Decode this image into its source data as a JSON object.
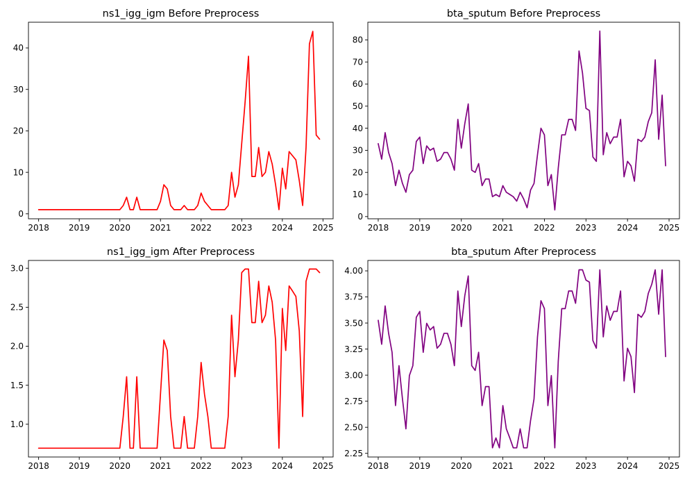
{
  "chart_data": [
    {
      "type": "line",
      "title": "ns1_igg_igm Before Preprocess",
      "color": "#ff0000",
      "x_start": "2018-01",
      "x_step": "1 month",
      "xlim": [
        "2017-10",
        "2025-04"
      ],
      "ylim": [
        -1.2,
        46.2
      ],
      "x_ticks": [
        "2018",
        "2019",
        "2020",
        "2021",
        "2022",
        "2023",
        "2024",
        "2025"
      ],
      "y_ticks": [
        0,
        10,
        20,
        30,
        40
      ],
      "y_tick_labels": [
        "0",
        "10",
        "20",
        "30",
        "40"
      ],
      "values": [
        1,
        1,
        1,
        1,
        1,
        1,
        1,
        1,
        1,
        1,
        1,
        1,
        1,
        1,
        1,
        1,
        1,
        1,
        1,
        1,
        1,
        1,
        1,
        1,
        1,
        2,
        4,
        1,
        1,
        4,
        1,
        1,
        1,
        1,
        1,
        1,
        3,
        7,
        6,
        2,
        1,
        1,
        1,
        2,
        1,
        1,
        1,
        2,
        5,
        3,
        2,
        1,
        1,
        1,
        1,
        1,
        2,
        10,
        4,
        7,
        17,
        27,
        38,
        9,
        9,
        16,
        9,
        10,
        15,
        12,
        7,
        1,
        11,
        6,
        15,
        14,
        13,
        8,
        2,
        16,
        41,
        44,
        19,
        18
      ]
    },
    {
      "type": "line",
      "title": "bta_sputum Before Preprocess",
      "color": "#800080",
      "x_start": "2018-01",
      "x_step": "1 month",
      "xlim": [
        "2017-10",
        "2025-04"
      ],
      "ylim": [
        -1.0,
        88.0
      ],
      "x_ticks": [
        "2018",
        "2019",
        "2020",
        "2021",
        "2022",
        "2023",
        "2024",
        "2025"
      ],
      "y_ticks": [
        0,
        10,
        20,
        30,
        40,
        50,
        60,
        70,
        80
      ],
      "y_tick_labels": [
        "0",
        "10",
        "20",
        "30",
        "40",
        "50",
        "60",
        "70",
        "80"
      ],
      "values": [
        33,
        26,
        38,
        29,
        24,
        14,
        21,
        15,
        11,
        19,
        21,
        34,
        36,
        24,
        32,
        30,
        31,
        25,
        26,
        29,
        29,
        26,
        21,
        44,
        31,
        42,
        51,
        21,
        20,
        24,
        14,
        17,
        17,
        9,
        10,
        9,
        14,
        11,
        10,
        9,
        7,
        11,
        8,
        4,
        12,
        15,
        28,
        40,
        37,
        14,
        19,
        3,
        22,
        37,
        37,
        44,
        44,
        39,
        75,
        65,
        49,
        48,
        27,
        25,
        84,
        28,
        38,
        33,
        36,
        36,
        44,
        18,
        25,
        23,
        16,
        35,
        34,
        36,
        43,
        47,
        71,
        35,
        55,
        23
      ]
    },
    {
      "type": "line",
      "title": "ns1_igg_igm After Preprocess",
      "color": "#ff0000",
      "x_start": "2018-01",
      "x_step": "1 month",
      "xlim": [
        "2017-10",
        "2025-04"
      ],
      "ylim": [
        0.58,
        3.1
      ],
      "x_ticks": [
        "2018",
        "2019",
        "2020",
        "2021",
        "2022",
        "2023",
        "2024",
        "2025"
      ],
      "y_ticks": [
        1.0,
        1.5,
        2.0,
        2.5,
        3.0
      ],
      "y_tick_labels": [
        "1.0",
        "1.5",
        "2.0",
        "2.5",
        "3.0"
      ],
      "values": [
        0.693,
        0.693,
        0.693,
        0.693,
        0.693,
        0.693,
        0.693,
        0.693,
        0.693,
        0.693,
        0.693,
        0.693,
        0.693,
        0.693,
        0.693,
        0.693,
        0.693,
        0.693,
        0.693,
        0.693,
        0.693,
        0.693,
        0.693,
        0.693,
        0.693,
        1.099,
        1.609,
        0.693,
        0.693,
        1.609,
        0.693,
        0.693,
        0.693,
        0.693,
        0.693,
        0.693,
        1.386,
        2.079,
        1.946,
        1.099,
        0.693,
        0.693,
        0.693,
        1.099,
        0.693,
        0.693,
        0.693,
        1.099,
        1.792,
        1.386,
        1.099,
        0.693,
        0.693,
        0.693,
        0.693,
        0.693,
        1.099,
        2.398,
        1.609,
        2.079,
        2.944,
        2.99,
        2.99,
        2.303,
        2.303,
        2.833,
        2.303,
        2.398,
        2.773,
        2.565,
        2.079,
        0.693,
        2.485,
        1.946,
        2.773,
        2.708,
        2.639,
        2.197,
        1.099,
        2.833,
        2.99,
        2.99,
        2.99,
        2.944
      ]
    },
    {
      "type": "line",
      "title": "bta_sputum After Preprocess",
      "color": "#800080",
      "x_start": "2018-01",
      "x_step": "1 month",
      "xlim": [
        "2017-10",
        "2025-04"
      ],
      "ylim": [
        2.215,
        4.1
      ],
      "x_ticks": [
        "2018",
        "2019",
        "2020",
        "2021",
        "2022",
        "2023",
        "2024",
        "2025"
      ],
      "y_ticks": [
        2.25,
        2.5,
        2.75,
        3.0,
        3.25,
        3.5,
        3.75,
        4.0
      ],
      "y_tick_labels": [
        "2.25",
        "2.50",
        "2.75",
        "3.00",
        "3.25",
        "3.50",
        "3.75",
        "4.00"
      ],
      "values": [
        3.526,
        3.296,
        3.664,
        3.401,
        3.219,
        2.708,
        3.091,
        2.773,
        2.485,
        2.996,
        3.091,
        3.555,
        3.611,
        3.219,
        3.497,
        3.434,
        3.466,
        3.258,
        3.296,
        3.401,
        3.401,
        3.296,
        3.091,
        3.807,
        3.466,
        3.761,
        3.951,
        3.091,
        3.045,
        3.219,
        2.708,
        2.89,
        2.89,
        2.303,
        2.398,
        2.303,
        2.708,
        2.485,
        2.398,
        2.303,
        2.303,
        2.485,
        2.303,
        2.303,
        2.565,
        2.773,
        3.367,
        3.714,
        3.638,
        2.708,
        2.996,
        2.303,
        3.135,
        3.638,
        3.638,
        3.807,
        3.807,
        3.689,
        4.01,
        4.01,
        3.912,
        3.892,
        3.332,
        3.258,
        4.01,
        3.367,
        3.664,
        3.526,
        3.611,
        3.611,
        3.807,
        2.944,
        3.258,
        3.178,
        2.833,
        3.584,
        3.555,
        3.611,
        3.784,
        3.871,
        4.01,
        3.584,
        4.01,
        3.178
      ]
    }
  ]
}
